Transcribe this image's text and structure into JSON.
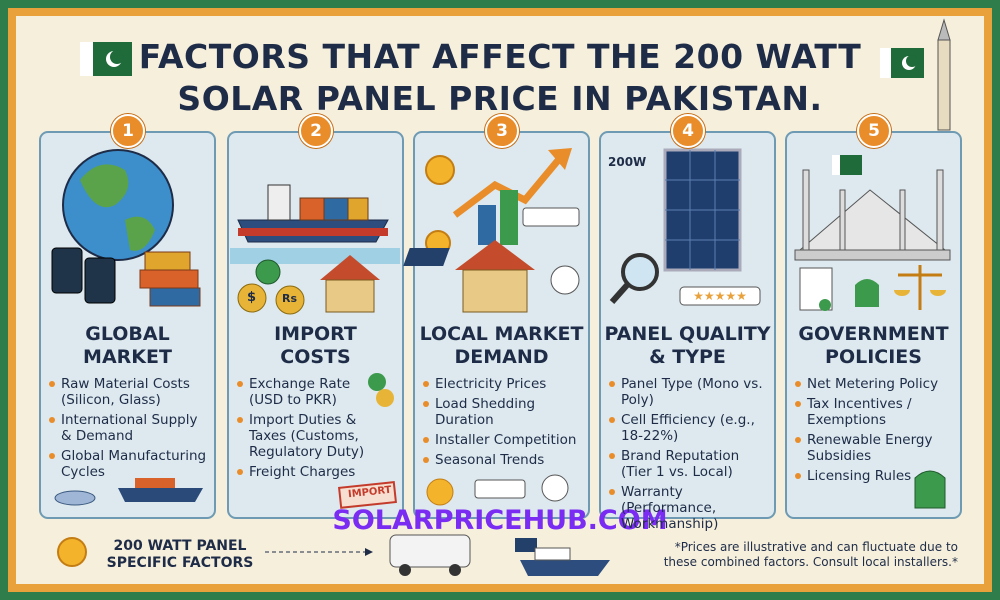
{
  "header": {
    "title": "FACTORS THAT AFFECT THE 200 WATT SOLAR PANEL PRICE IN PAKISTAN."
  },
  "columns": [
    {
      "number": "1",
      "heading": [
        "GLOBAL",
        "MARKET"
      ],
      "bullets": [
        "Raw Material Costs (Silicon, Glass)",
        "International Supply & Demand",
        "Global Manufacturing Cycles"
      ]
    },
    {
      "number": "2",
      "heading": [
        "IMPORT",
        "COSTS"
      ],
      "bullets": [
        "Exchange Rate (USD to PKR)",
        "Import Duties & Taxes (Customs, Regulatory Duty)",
        "Freight Charges"
      ],
      "coins": [
        "$",
        "Rs"
      ],
      "stamp": "IMPORT"
    },
    {
      "number": "3",
      "heading": [
        "LOCAL MARKET",
        "DEMAND"
      ],
      "bullets": [
        "Electricity Prices",
        "Load Shedding Duration",
        "Installer Competition",
        "Seasonal Trends"
      ]
    },
    {
      "number": "4",
      "heading": [
        "PANEL QUALITY",
        "& TYPE"
      ],
      "bullets": [
        "Panel Type (Mono vs. Poly)",
        "Cell Efficiency (e.g., 18-22%)",
        "Brand Reputation (Tier 1 vs. Local)",
        "Warranty (Performance, Workmanship)"
      ],
      "panel_label": "200W"
    },
    {
      "number": "5",
      "heading": [
        "GOVERNMENT",
        "POLICIES"
      ],
      "bullets": [
        "Net Metering Policy",
        "Tax Incentives / Exemptions",
        "Renewable Energy Subsidies",
        "Licensing Rules"
      ]
    }
  ],
  "footer": {
    "label": "200 WATT PANEL SPECIFIC FACTORS",
    "note": "*Prices are illustrative and can fluctuate due to these combined factors. Consult local installers.*"
  },
  "watermark": "SOLARPRICEHUB.COM"
}
